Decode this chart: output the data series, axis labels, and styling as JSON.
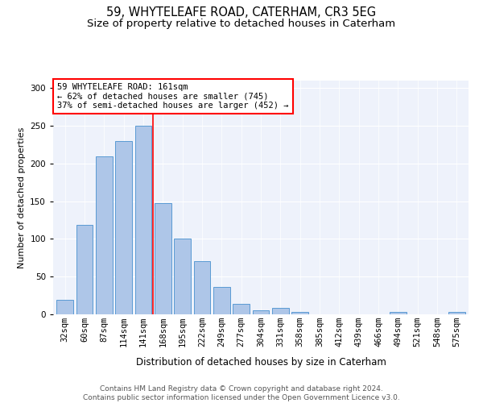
{
  "title1": "59, WHYTELEAFE ROAD, CATERHAM, CR3 5EG",
  "title2": "Size of property relative to detached houses in Caterham",
  "xlabel": "Distribution of detached houses by size in Caterham",
  "ylabel": "Number of detached properties",
  "bar_labels": [
    "32sqm",
    "60sqm",
    "87sqm",
    "114sqm",
    "141sqm",
    "168sqm",
    "195sqm",
    "222sqm",
    "249sqm",
    "277sqm",
    "304sqm",
    "331sqm",
    "358sqm",
    "385sqm",
    "412sqm",
    "439sqm",
    "466sqm",
    "494sqm",
    "521sqm",
    "548sqm",
    "575sqm"
  ],
  "bar_values": [
    19,
    119,
    209,
    230,
    250,
    147,
    101,
    71,
    36,
    14,
    5,
    9,
    3,
    0,
    0,
    0,
    0,
    3,
    0,
    0,
    3
  ],
  "bar_color": "#aec6e8",
  "bar_edge_color": "#5a9bd4",
  "vline_x": 4.5,
  "vline_color": "red",
  "annotation_text": "59 WHYTELEAFE ROAD: 161sqm\n← 62% of detached houses are smaller (745)\n37% of semi-detached houses are larger (452) →",
  "annotation_box_color": "white",
  "annotation_box_edge": "red",
  "ylim": [
    0,
    310
  ],
  "yticks": [
    0,
    50,
    100,
    150,
    200,
    250,
    300
  ],
  "background_color": "#eef2fb",
  "footer_text": "Contains HM Land Registry data © Crown copyright and database right 2024.\nContains public sector information licensed under the Open Government Licence v3.0.",
  "title1_fontsize": 10.5,
  "title2_fontsize": 9.5,
  "xlabel_fontsize": 8.5,
  "ylabel_fontsize": 8,
  "tick_fontsize": 7.5,
  "footer_fontsize": 6.5
}
